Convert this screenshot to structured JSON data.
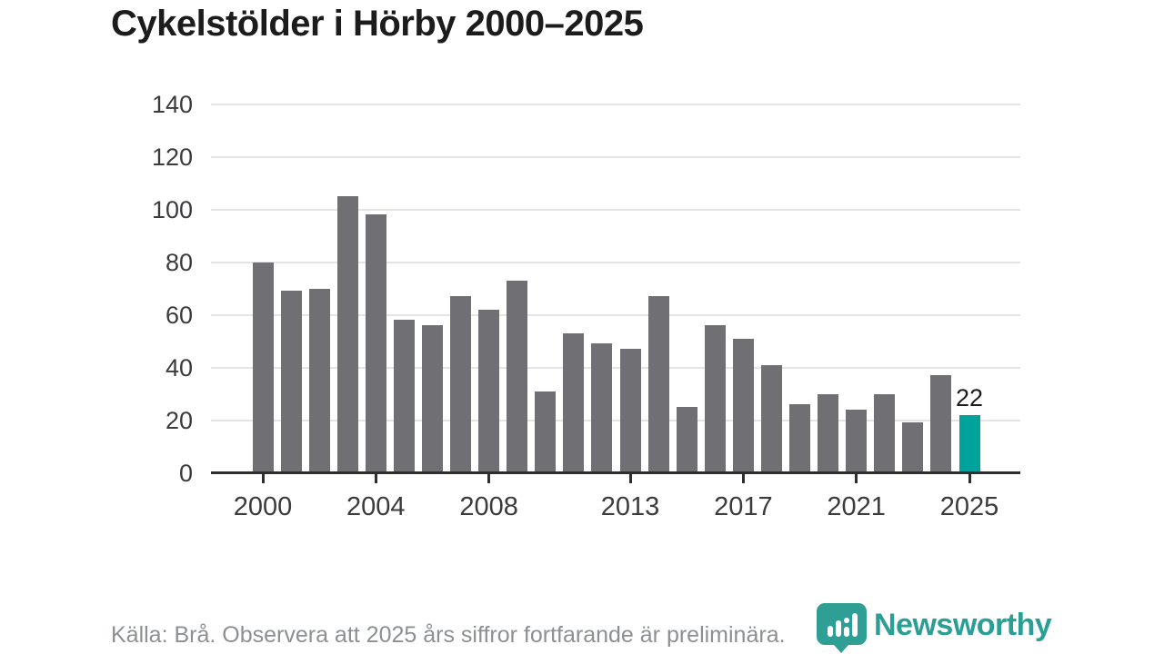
{
  "title": "Cykelstölder i Hörby 2000–2025",
  "footer": {
    "source_note": "Källa: Brå. Observera att 2025 års siffror fortfarande är preliminära."
  },
  "logo": {
    "name": "Newsworthy",
    "text": "Newsworthy",
    "icon": "bar-chart-pin-icon"
  },
  "colors": {
    "bar": "#707074",
    "highlight": "#00a39b",
    "axis": "#2e2e2e",
    "grid": "#e4e4e4",
    "title_text": "#1c1c1c",
    "tick_text": "#3a3b3d",
    "footer_text": "#8d9092",
    "logo_teal": "#2b9f96",
    "annotation_text": "#1d1d1d"
  },
  "chart_data": {
    "type": "bar",
    "title": "Cykelstölder i Hörby 2000–2025",
    "xlabel": "",
    "ylabel": "",
    "x": [
      2000,
      2001,
      2002,
      2003,
      2004,
      2005,
      2006,
      2007,
      2008,
      2009,
      2010,
      2011,
      2012,
      2013,
      2014,
      2015,
      2016,
      2017,
      2018,
      2019,
      2020,
      2021,
      2022,
      2023,
      2024,
      2025
    ],
    "values": [
      80,
      69,
      70,
      105,
      98,
      58,
      56,
      67,
      62,
      73,
      31,
      53,
      49,
      47,
      67,
      25,
      56,
      51,
      41,
      26,
      30,
      24,
      30,
      19,
      37,
      22
    ],
    "highlight_year": 2025,
    "highlight_value_label": "22",
    "y_ticks": [
      0,
      20,
      40,
      60,
      80,
      100,
      120,
      140
    ],
    "x_tick_years": [
      2000,
      2004,
      2008,
      2013,
      2017,
      2021,
      2025
    ],
    "ylim": [
      0,
      145
    ],
    "grid": "horizontal",
    "legend": "none"
  }
}
